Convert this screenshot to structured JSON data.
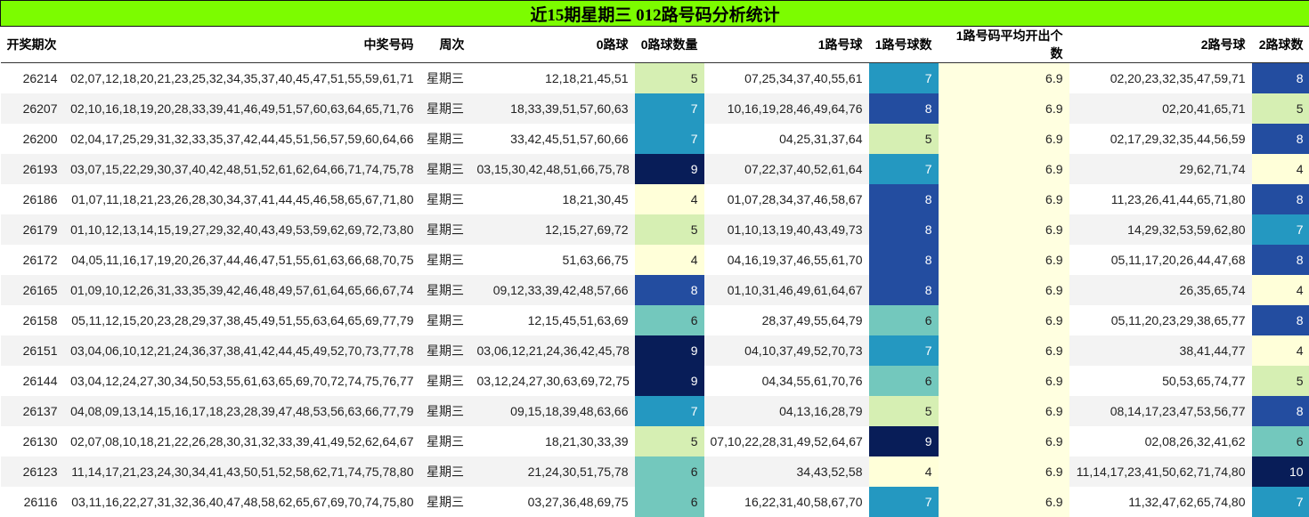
{
  "title": "近15期星期三 012路号码分析统计",
  "headers": [
    "开奖期次",
    "中奖号码",
    "周次",
    "0路球",
    "0路球数量",
    "1路号球",
    "1路号球数",
    "1路号码平均开出个数",
    "2路号球",
    "2路球数"
  ],
  "count_colors": {
    "4": "#ffffd9",
    "5": "#d6efb3",
    "6": "#73c8bd",
    "7": "#2498c1",
    "8": "#234da0",
    "9": "#081d58",
    "10": "#081d58"
  },
  "rows": [
    {
      "issue": "26214",
      "numbers": "02,07,12,18,20,21,23,25,32,34,35,37,40,45,47,51,55,59,61,71",
      "weekday": "星期三",
      "r0": "12,18,21,45,51",
      "r0n": "5",
      "r1": "07,25,34,37,40,55,61",
      "r1n": "7",
      "avg": "6.9",
      "r2": "02,20,23,32,35,47,59,71",
      "r2n": "8"
    },
    {
      "issue": "26207",
      "numbers": "02,10,16,18,19,20,28,33,39,41,46,49,51,57,60,63,64,65,71,76",
      "weekday": "星期三",
      "r0": "18,33,39,51,57,60,63",
      "r0n": "7",
      "r1": "10,16,19,28,46,49,64,76",
      "r1n": "8",
      "avg": "6.9",
      "r2": "02,20,41,65,71",
      "r2n": "5"
    },
    {
      "issue": "26200",
      "numbers": "02,04,17,25,29,31,32,33,35,37,42,44,45,51,56,57,59,60,64,66",
      "weekday": "星期三",
      "r0": "33,42,45,51,57,60,66",
      "r0n": "7",
      "r1": "04,25,31,37,64",
      "r1n": "5",
      "avg": "6.9",
      "r2": "02,17,29,32,35,44,56,59",
      "r2n": "8"
    },
    {
      "issue": "26193",
      "numbers": "03,07,15,22,29,30,37,40,42,48,51,52,61,62,64,66,71,74,75,78",
      "weekday": "星期三",
      "r0": "03,15,30,42,48,51,66,75,78",
      "r0n": "9",
      "r1": "07,22,37,40,52,61,64",
      "r1n": "7",
      "avg": "6.9",
      "r2": "29,62,71,74",
      "r2n": "4"
    },
    {
      "issue": "26186",
      "numbers": "01,07,11,18,21,23,26,28,30,34,37,41,44,45,46,58,65,67,71,80",
      "weekday": "星期三",
      "r0": "18,21,30,45",
      "r0n": "4",
      "r1": "01,07,28,34,37,46,58,67",
      "r1n": "8",
      "avg": "6.9",
      "r2": "11,23,26,41,44,65,71,80",
      "r2n": "8"
    },
    {
      "issue": "26179",
      "numbers": "01,10,12,13,14,15,19,27,29,32,40,43,49,53,59,62,69,72,73,80",
      "weekday": "星期三",
      "r0": "12,15,27,69,72",
      "r0n": "5",
      "r1": "01,10,13,19,40,43,49,73",
      "r1n": "8",
      "avg": "6.9",
      "r2": "14,29,32,53,59,62,80",
      "r2n": "7"
    },
    {
      "issue": "26172",
      "numbers": "04,05,11,16,17,19,20,26,37,44,46,47,51,55,61,63,66,68,70,75",
      "weekday": "星期三",
      "r0": "51,63,66,75",
      "r0n": "4",
      "r1": "04,16,19,37,46,55,61,70",
      "r1n": "8",
      "avg": "6.9",
      "r2": "05,11,17,20,26,44,47,68",
      "r2n": "8"
    },
    {
      "issue": "26165",
      "numbers": "01,09,10,12,26,31,33,35,39,42,46,48,49,57,61,64,65,66,67,74",
      "weekday": "星期三",
      "r0": "09,12,33,39,42,48,57,66",
      "r0n": "8",
      "r1": "01,10,31,46,49,61,64,67",
      "r1n": "8",
      "avg": "6.9",
      "r2": "26,35,65,74",
      "r2n": "4"
    },
    {
      "issue": "26158",
      "numbers": "05,11,12,15,20,23,28,29,37,38,45,49,51,55,63,64,65,69,77,79",
      "weekday": "星期三",
      "r0": "12,15,45,51,63,69",
      "r0n": "6",
      "r1": "28,37,49,55,64,79",
      "r1n": "6",
      "avg": "6.9",
      "r2": "05,11,20,23,29,38,65,77",
      "r2n": "8"
    },
    {
      "issue": "26151",
      "numbers": "03,04,06,10,12,21,24,36,37,38,41,42,44,45,49,52,70,73,77,78",
      "weekday": "星期三",
      "r0": "03,06,12,21,24,36,42,45,78",
      "r0n": "9",
      "r1": "04,10,37,49,52,70,73",
      "r1n": "7",
      "avg": "6.9",
      "r2": "38,41,44,77",
      "r2n": "4"
    },
    {
      "issue": "26144",
      "numbers": "03,04,12,24,27,30,34,50,53,55,61,63,65,69,70,72,74,75,76,77",
      "weekday": "星期三",
      "r0": "03,12,24,27,30,63,69,72,75",
      "r0n": "9",
      "r1": "04,34,55,61,70,76",
      "r1n": "6",
      "avg": "6.9",
      "r2": "50,53,65,74,77",
      "r2n": "5"
    },
    {
      "issue": "26137",
      "numbers": "04,08,09,13,14,15,16,17,18,23,28,39,47,48,53,56,63,66,77,79",
      "weekday": "星期三",
      "r0": "09,15,18,39,48,63,66",
      "r0n": "7",
      "r1": "04,13,16,28,79",
      "r1n": "5",
      "avg": "6.9",
      "r2": "08,14,17,23,47,53,56,77",
      "r2n": "8"
    },
    {
      "issue": "26130",
      "numbers": "02,07,08,10,18,21,22,26,28,30,31,32,33,39,41,49,52,62,64,67",
      "weekday": "星期三",
      "r0": "18,21,30,33,39",
      "r0n": "5",
      "r1": "07,10,22,28,31,49,52,64,67",
      "r1n": "9",
      "avg": "6.9",
      "r2": "02,08,26,32,41,62",
      "r2n": "6"
    },
    {
      "issue": "26123",
      "numbers": "11,14,17,21,23,24,30,34,41,43,50,51,52,58,62,71,74,75,78,80",
      "weekday": "星期三",
      "r0": "21,24,30,51,75,78",
      "r0n": "6",
      "r1": "34,43,52,58",
      "r1n": "4",
      "avg": "6.9",
      "r2": "11,14,17,23,41,50,62,71,74,80",
      "r2n": "10"
    },
    {
      "issue": "26116",
      "numbers": "03,11,16,22,27,31,32,36,40,47,48,58,62,65,67,69,70,74,75,80",
      "weekday": "星期三",
      "r0": "03,27,36,48,69,75",
      "r0n": "6",
      "r1": "16,22,31,40,58,67,70",
      "r1n": "7",
      "avg": "6.9",
      "r2": "11,32,47,62,65,74,80",
      "r2n": "7"
    }
  ]
}
